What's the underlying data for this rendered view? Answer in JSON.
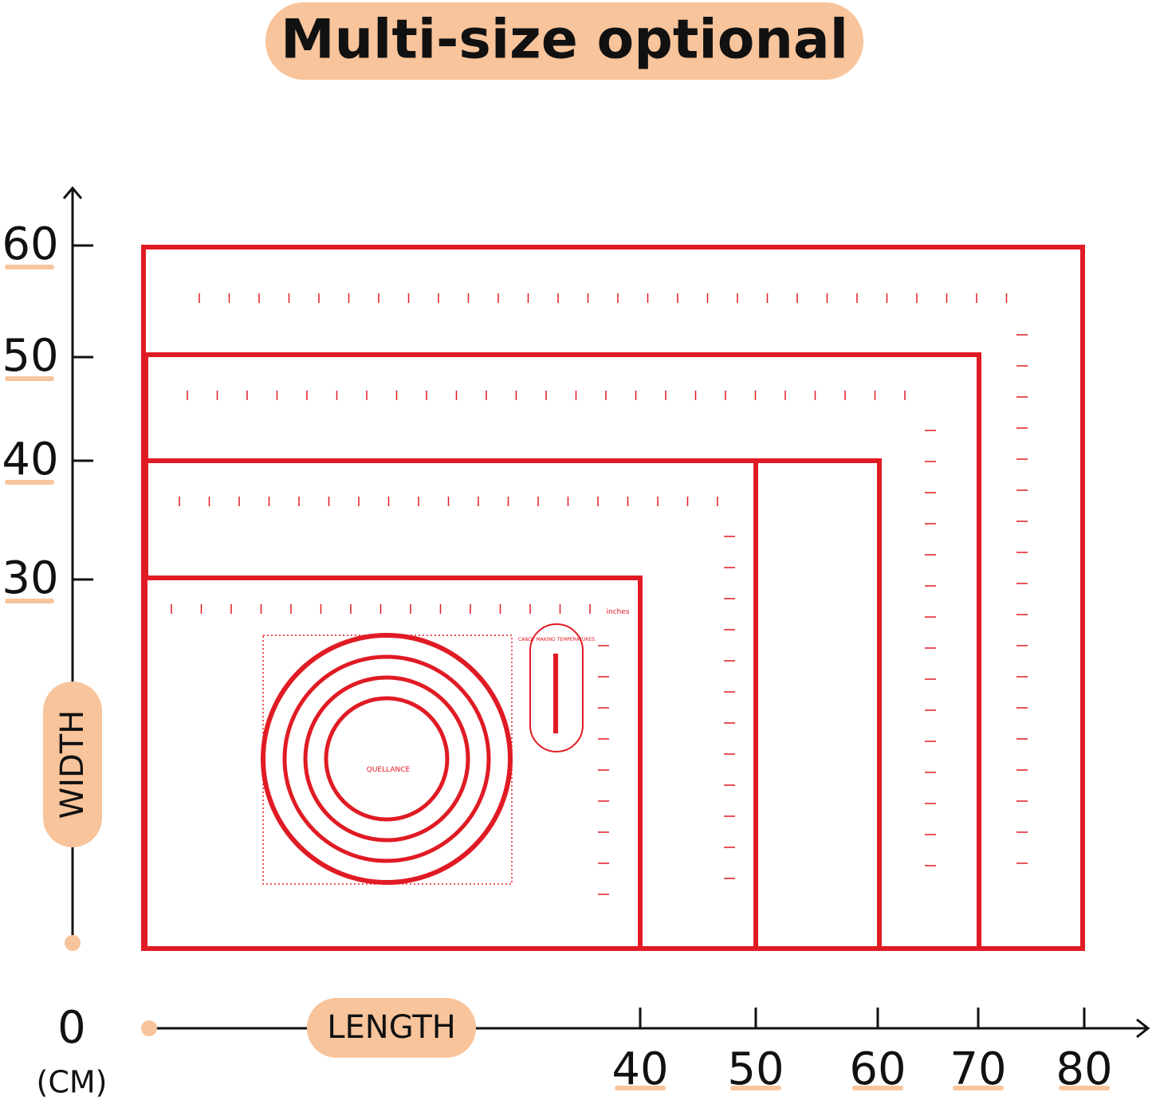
{
  "header": {
    "title": "Multi-size optional"
  },
  "y_axis": {
    "label": "WIDTH",
    "ticks": [
      "60",
      "50",
      "40",
      "30"
    ]
  },
  "x_axis": {
    "label": "LENGTH",
    "origin": "0",
    "unit": "(CM)",
    "ticks": [
      "40",
      "50",
      "60",
      "70",
      "80"
    ]
  },
  "mat": {
    "brand": "QUELLANCE",
    "units": "inches",
    "chart": "CANDY MAKING TEMPERATURES"
  }
}
